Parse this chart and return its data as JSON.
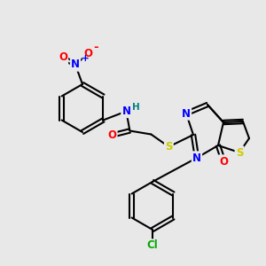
{
  "bg_color": "#e8e8e8",
  "atom_colors": {
    "C": "#000000",
    "N": "#0000ff",
    "O": "#ff0000",
    "S": "#cccc00",
    "H": "#008080",
    "Cl": "#00aa00"
  },
  "font_size": 8.5,
  "fig_size": [
    3.0,
    3.0
  ],
  "dpi": 100
}
